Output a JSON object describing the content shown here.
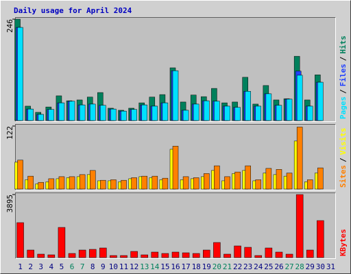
{
  "chart_data": {
    "type": "bar",
    "title": "Daily usage for April 2024",
    "categories": [
      "1",
      "2",
      "3",
      "4",
      "5",
      "6",
      "7",
      "8",
      "9",
      "10",
      "11",
      "12",
      "13",
      "14",
      "15",
      "16",
      "17",
      "18",
      "19",
      "20",
      "21",
      "22",
      "23",
      "24",
      "25",
      "26",
      "27",
      "28",
      "29",
      "30",
      "31"
    ],
    "label_color": "#000080",
    "weekend_label_color": "#00805c",
    "weekend_days": [
      6,
      7,
      13,
      14,
      20,
      21,
      27,
      28
    ],
    "legend_separator": "/",
    "panels": [
      {
        "ylim": [
          0,
          246
        ],
        "yticks": [
          246
        ],
        "series": [
          {
            "name": "Pages",
            "color": "#00e0ff",
            "values": [
              226,
              28,
              15,
              27,
              43,
              47,
              38,
              40,
              37,
              28,
              23,
              27,
              38,
              35,
              43,
              121,
              25,
              40,
              48,
              47,
              35,
              32,
              71,
              35,
              65,
              37,
              52,
              110,
              35,
              93,
              0
            ]
          },
          {
            "name": "Files",
            "color": "#2040ff",
            "values": [
              226,
              28,
              15,
              27,
              43,
              47,
              38,
              40,
              37,
              28,
              23,
              27,
              38,
              35,
              43,
              121,
              25,
              40,
              48,
              47,
              35,
              32,
              71,
              35,
              65,
              37,
              52,
              120,
              35,
              93,
              0
            ]
          },
          {
            "name": "Hits",
            "color": "#00805c",
            "values": [
              246,
              35,
              20,
              33,
              60,
              48,
              50,
              57,
              68,
              30,
              25,
              30,
              43,
              57,
              63,
              128,
              45,
              62,
              58,
              78,
              43,
              45,
              105,
              40,
              85,
              50,
              53,
              156,
              50,
              111,
              0
            ]
          }
        ]
      },
      {
        "ylim": [
          0,
          122
        ],
        "yticks": [
          122
        ],
        "series": [
          {
            "name": "Sites",
            "color": "#ff8000",
            "values": [
              56,
              25,
              13,
              20,
              24,
              24,
              28,
              36,
              17,
              18,
              17,
              22,
              25,
              25,
              21,
              83,
              24,
              22,
              30,
              45,
              24,
              33,
              45,
              18,
              40,
              38,
              31,
              120,
              18,
              41,
              0
            ]
          },
          {
            "name": "Visits",
            "color": "#ffff00",
            "values": [
              52,
              18,
              10,
              14,
              20,
              22,
              24,
              28,
              16,
              16,
              14,
              20,
              24,
              22,
              18,
              77,
              18,
              20,
              24,
              36,
              16,
              30,
              36,
              16,
              31,
              28,
              25,
              93,
              14,
              31,
              0
            ]
          }
        ]
      },
      {
        "ylim": [
          0,
          3895
        ],
        "yticks": [
          3895
        ],
        "series": [
          {
            "name": "KBytes",
            "color": "#ff0000",
            "values": [
              2159,
              466,
              212,
              169,
              1863,
              254,
              466,
              508,
              593,
              127,
              127,
              381,
              169,
              339,
              254,
              339,
              296,
              254,
              466,
              932,
              212,
              720,
              635,
              127,
              593,
              339,
              212,
              3895,
              466,
              2286,
              0
            ]
          }
        ]
      }
    ]
  }
}
